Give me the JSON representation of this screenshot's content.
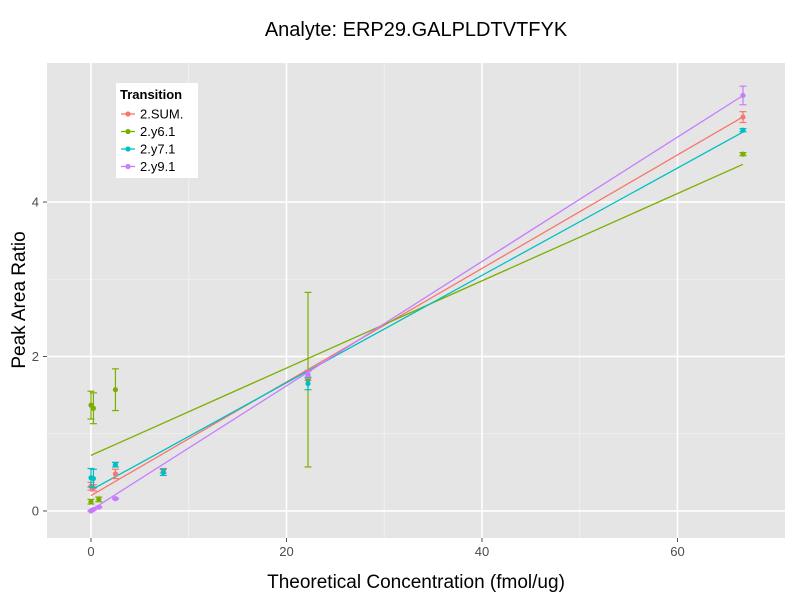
{
  "chart_data": {
    "type": "scatter",
    "title": "Analyte: ERP29.GALPLDTVTFYK",
    "xlabel": "Theoretical Concentration (fmol/ug)",
    "ylabel": "Peak Area Ratio",
    "xlim": [
      -4.5,
      71
    ],
    "ylim": [
      -0.35,
      5.8
    ],
    "xticks": [
      0,
      20,
      40,
      60
    ],
    "yticks": [
      0,
      2,
      4
    ],
    "grid": true,
    "legend": {
      "title": "Transition",
      "position": "top-left"
    },
    "series": [
      {
        "name": "2.SUM.",
        "color": "#f8766d",
        "points": [
          {
            "x": 0,
            "y": 0.32,
            "err": 0.05
          },
          {
            "x": 0.25,
            "y": 0.3,
            "err": 0.04
          },
          {
            "x": 2.5,
            "y": 0.48,
            "err": 0.06
          },
          {
            "x": 7.4,
            "y": 0.52,
            "err": 0.03
          },
          {
            "x": 22.2,
            "y": 1.75,
            "err": 0.06
          },
          {
            "x": 66.7,
            "y": 5.1,
            "err": 0.07
          }
        ],
        "fit": {
          "intercept": 0.2,
          "slope": 0.0735
        }
      },
      {
        "name": "2.y6.1",
        "color": "#7cae00",
        "points": [
          {
            "x": 0,
            "y": 1.37,
            "err": 0.18
          },
          {
            "x": 0,
            "y": 0.12,
            "err": 0.03
          },
          {
            "x": 0.25,
            "y": 1.33,
            "err": 0.2
          },
          {
            "x": 0.8,
            "y": 0.15,
            "err": 0.03
          },
          {
            "x": 2.5,
            "y": 1.57,
            "err": 0.27
          },
          {
            "x": 22.2,
            "y": 1.7,
            "err": 1.13
          },
          {
            "x": 66.7,
            "y": 4.62,
            "err": 0.02
          }
        ],
        "fit": {
          "intercept": 0.72,
          "slope": 0.0565
        }
      },
      {
        "name": "2.y7.1",
        "color": "#00bfc4",
        "points": [
          {
            "x": 0,
            "y": 0.43,
            "err": 0.12
          },
          {
            "x": 0.25,
            "y": 0.42,
            "err": 0.12
          },
          {
            "x": 2.5,
            "y": 0.6,
            "err": 0.03
          },
          {
            "x": 7.4,
            "y": 0.5,
            "err": 0.04
          },
          {
            "x": 22.2,
            "y": 1.65,
            "err": 0.08
          },
          {
            "x": 66.7,
            "y": 4.93,
            "err": 0.02
          }
        ],
        "fit": {
          "intercept": 0.27,
          "slope": 0.0695
        }
      },
      {
        "name": "2.y9.1",
        "color": "#c77cff",
        "points": [
          {
            "x": 0,
            "y": 0.0,
            "err": 0.01
          },
          {
            "x": 0.25,
            "y": 0.02,
            "err": 0.01
          },
          {
            "x": 0.8,
            "y": 0.05,
            "err": 0.01
          },
          {
            "x": 2.5,
            "y": 0.16,
            "err": 0.01
          },
          {
            "x": 22.2,
            "y": 1.77,
            "err": 0.05
          },
          {
            "x": 66.7,
            "y": 5.38,
            "err": 0.12
          }
        ],
        "fit": {
          "intercept": 0.01,
          "slope": 0.0805
        }
      }
    ]
  }
}
